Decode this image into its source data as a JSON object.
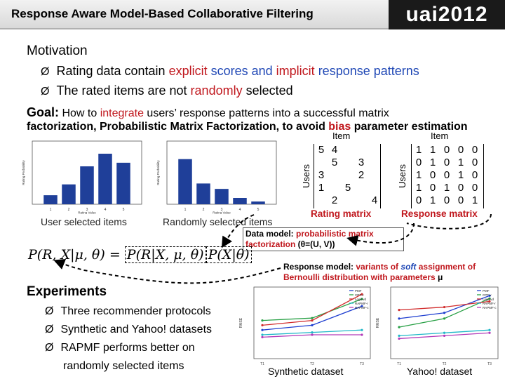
{
  "header": {
    "title": "Response Aware Model-Based Collaborative Filtering",
    "logo_text": "uai2012"
  },
  "motivation": {
    "heading": "Motivation",
    "bullet1": {
      "prefix": "Rating data contain ",
      "explicit": "explicit",
      "mid": " scores and ",
      "implicit": "implicit",
      "suffix": " response patterns"
    },
    "bullet2": {
      "prefix": "The rated items are not ",
      "randomly": "randomly",
      "suffix": " selected"
    },
    "arrow_glyph": "Ø"
  },
  "goal": {
    "label": "Goal:",
    "line1_a": "How to ",
    "integrate": "integrate",
    "line1_b": " users’ response patterns into a successful matrix",
    "line2_a": "factorization, Probabilistic Matrix Factorization, to avoid ",
    "bias": "bias",
    "line2_b": " parameter estimation"
  },
  "chart_captions": {
    "user_selected": "User selected items",
    "random_selected": "Randomly selected items"
  },
  "chart_data": [
    {
      "type": "bar",
      "categories": [
        "1",
        "2",
        "3",
        "4",
        "5"
      ],
      "values": [
        0.05,
        0.11,
        0.21,
        0.28,
        0.23
      ],
      "ylim": [
        0,
        0.35
      ],
      "xlabel": "Rating Value",
      "ylabel": "Rating Probability"
    },
    {
      "type": "bar",
      "categories": [
        "1",
        "2",
        "3",
        "4",
        "5"
      ],
      "values": [
        0.5,
        0.23,
        0.17,
        0.07,
        0.03
      ],
      "ylim": [
        0,
        0.7
      ],
      "xlabel": "Rating Value",
      "ylabel": "Rating Probability"
    },
    {
      "type": "line",
      "series": [
        {
          "name": "PMF",
          "color": "#1f3fd0",
          "values": [
            0.82,
            0.84,
            0.92
          ]
        },
        {
          "name": "CPT-v",
          "color": "#28a045",
          "values": [
            0.86,
            0.87,
            0.95
          ]
        },
        {
          "name": "Logit-vd",
          "color": "#d12b2b",
          "values": [
            0.84,
            0.86,
            0.97
          ]
        },
        {
          "name": "RAPMF-r",
          "color": "#20b8c8",
          "values": [
            0.8,
            0.81,
            0.82
          ]
        },
        {
          "name": "RAPMF-c",
          "color": "#b23ab9",
          "values": [
            0.79,
            0.8,
            0.8
          ]
        }
      ],
      "categories": [
        "T1",
        "T2",
        "T3"
      ],
      "ylim": [
        0.7,
        1.0
      ],
      "ylabel": "RMSE"
    },
    {
      "type": "line",
      "series": [
        {
          "name": "PMF",
          "color": "#1f3fd0",
          "values": [
            1.24,
            1.26,
            1.32
          ]
        },
        {
          "name": "CPT-v",
          "color": "#28a045",
          "values": [
            1.21,
            1.24,
            1.31
          ]
        },
        {
          "name": "Logit-vd",
          "color": "#d12b2b",
          "values": [
            1.27,
            1.28,
            1.3
          ]
        },
        {
          "name": "RAPMF-r",
          "color": "#20b8c8",
          "values": [
            1.18,
            1.19,
            1.2
          ]
        },
        {
          "name": "RAPMF-c",
          "color": "#b23ab9",
          "values": [
            1.17,
            1.18,
            1.19
          ]
        }
      ],
      "categories": [
        "T1",
        "T2",
        "T3"
      ],
      "ylim": [
        1.1,
        1.35
      ],
      "ylabel": "RMSE"
    }
  ],
  "rating_matrix": {
    "col_label": "Item",
    "row_label": "Users",
    "caption": "Rating matrix",
    "rows": [
      [
        "5",
        "4",
        "",
        "",
        ""
      ],
      [
        "",
        "5",
        "",
        "3",
        ""
      ],
      [
        "3",
        "",
        "",
        "2",
        ""
      ],
      [
        "1",
        "",
        "5",
        "",
        ""
      ],
      [
        "",
        "2",
        "",
        "",
        "4"
      ]
    ]
  },
  "response_matrix": {
    "col_label": "Item",
    "row_label": "Users",
    "caption": "Response matrix",
    "rows": [
      [
        "1",
        "1",
        "0",
        "0",
        "0"
      ],
      [
        "0",
        "1",
        "0",
        "1",
        "0"
      ],
      [
        "1",
        "0",
        "0",
        "1",
        "0"
      ],
      [
        "1",
        "0",
        "1",
        "0",
        "0"
      ],
      [
        "0",
        "1",
        "0",
        "0",
        "1"
      ]
    ]
  },
  "data_model": {
    "label": "Data model: ",
    "text": "probabilistic matrix factorization",
    "param": " (θ=(U, V))"
  },
  "response_model": {
    "label": "Response model: ",
    "text_a": "variants of ",
    "soft": "soft",
    "text_b": " assignment of Bernoulli distribution with parameters ",
    "mu": "μ"
  },
  "formula": {
    "lhs": "P(R, X|μ, θ)",
    "eq": " = ",
    "rhs_a": "P(R|X, μ, θ)",
    "rhs_b": "P(X|θ)"
  },
  "experiments": {
    "heading": "Experiments",
    "items": [
      "Three recommender protocols",
      "Synthetic and Yahoo! datasets",
      "RAPMF performs better on",
      "randomly selected items"
    ]
  },
  "dataset_captions": {
    "synthetic": "Synthetic dataset",
    "yahoo": "Yahoo! dataset"
  },
  "colors": {
    "accent_red": "#c0171d",
    "accent_blue": "#1f47b5",
    "bar_blue": "#1f3f99"
  }
}
